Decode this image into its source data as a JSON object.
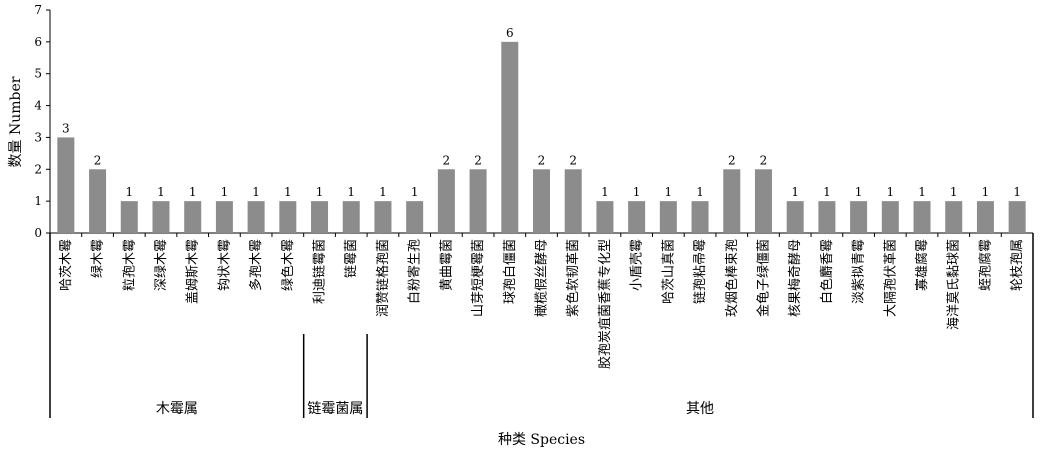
{
  "chart_data": {
    "type": "bar",
    "title": "",
    "xlabel": "种类 Species",
    "ylabel": "数量 Number",
    "ylim": [
      0,
      7
    ],
    "yticks": [
      0,
      1,
      2,
      3,
      4,
      5,
      6,
      7
    ],
    "grid": false,
    "bar_color": "#8c8c8c",
    "categories": [
      "哈茨木霉",
      "绿木霉",
      "粒孢木霉",
      "深绿木霉",
      "盖姆斯木霉",
      "钩状木霉",
      "多孢木霉",
      "绿色木霉",
      "利迪链霉菌",
      "链霉菌",
      "润赞链格孢菌",
      "白粉寄生孢",
      "黄曲霉菌",
      "山芽短梗霉菌",
      "球孢白僵菌",
      "橄榄假丝酵母",
      "紫色软韧革菌",
      "胶孢炭疽菌香蕉专化型",
      "小盾壳霉",
      "哈茨山真菌",
      "链孢粘帚霉",
      "玫烟色棒束孢",
      "金龟子绿僵菌",
      "核果梅奇酵母",
      "白色麝香霉",
      "淡紫拟青霉",
      "大隔孢伏革菌",
      "寡雄腐霉",
      "海洋莫氏黏球菌",
      "蛭孢腐霉",
      "轮枝孢属"
    ],
    "values": [
      3,
      2,
      1,
      1,
      1,
      1,
      1,
      1,
      1,
      1,
      1,
      1,
      2,
      2,
      6,
      2,
      2,
      1,
      1,
      1,
      1,
      2,
      2,
      1,
      1,
      1,
      1,
      1,
      1,
      1,
      1
    ],
    "data_labels": [
      "3",
      "2",
      "1",
      "1",
      "1",
      "1",
      "1",
      "1",
      "1",
      "1",
      "1",
      "1",
      "2",
      "2",
      "6",
      "2",
      "2",
      "1",
      "1",
      "1",
      "1",
      "2",
      "2",
      "1",
      "1",
      "1",
      "1",
      "1",
      "1",
      "1",
      "1"
    ],
    "groups": [
      {
        "label": "木霉属",
        "start": 0,
        "end": 7
      },
      {
        "label": "链霉菌属",
        "start": 8,
        "end": 9
      },
      {
        "label": "其他",
        "start": 10,
        "end": 30
      }
    ]
  }
}
